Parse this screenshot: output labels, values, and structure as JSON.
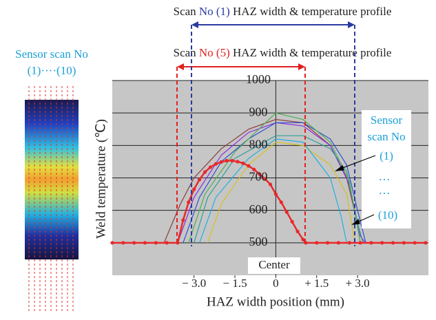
{
  "chart_data": {
    "type": "line",
    "annotations": {
      "scan1": [
        "Scan",
        "No (1)",
        "HAZ width & temperature profile"
      ],
      "scan5": [
        "Scan",
        "No (5)",
        "HAZ width & temperature profile"
      ],
      "sensor_title": [
        "Sensor scan No",
        "(1)····(10)"
      ],
      "sensor_in_plot": [
        "Sensor",
        "scan No",
        "(1)",
        "…",
        "…",
        "(10)"
      ],
      "center": "Center"
    },
    "ylabel": "Weld temperature (℃)",
    "xlabel": "HAZ width position (mm)",
    "xlim": [
      -6,
      5.6
    ],
    "ylim": [
      400,
      1000
    ],
    "xticks": [
      {
        "value": -3,
        "label": "− 3.0"
      },
      {
        "value": -1.5,
        "label": "− 1.5"
      },
      0,
      {
        "value": 1.5,
        "label": "+ 1.5"
      },
      {
        "value": 3,
        "label": "+ 3.0"
      }
    ],
    "yticks": [
      500,
      600,
      700,
      800,
      900,
      1000
    ],
    "grid": true,
    "series": [
      {
        "color": "#8b3a3a",
        "x": [
          -4.1,
          -3.5,
          -3,
          -2,
          -1,
          0,
          1,
          2,
          2.6,
          3,
          3.2
        ],
        "values": [
          500,
          620,
          700,
          790,
          850,
          880,
          870,
          800,
          700,
          560,
          500
        ]
      },
      {
        "color": "#8a2be2",
        "x": [
          -3.6,
          -3,
          -2,
          -1,
          0,
          1,
          2,
          2.7,
          3.1,
          3.3
        ],
        "values": [
          500,
          640,
          770,
          840,
          870,
          860,
          800,
          680,
          520,
          500
        ]
      },
      {
        "color": "#3050d0",
        "x": [
          -3.4,
          -2.8,
          -2,
          -1,
          0,
          1,
          2,
          2.6,
          3,
          3.3
        ],
        "values": [
          500,
          640,
          750,
          820,
          870,
          870,
          820,
          740,
          600,
          500
        ]
      },
      {
        "color": "#2aa198",
        "x": [
          -3,
          -2.5,
          -1.5,
          0,
          1,
          2,
          2.6,
          3,
          3.2
        ],
        "values": [
          500,
          640,
          760,
          830,
          830,
          790,
          720,
          560,
          500
        ]
      },
      {
        "color": "#4caf50",
        "x": [
          -3.2,
          -2.6,
          -1.5,
          0,
          1,
          2,
          2.7,
          3.1
        ],
        "values": [
          500,
          650,
          780,
          900,
          880,
          810,
          690,
          500
        ]
      },
      {
        "color": "#d4c020",
        "x": [
          -2.5,
          -2,
          -1,
          0,
          1,
          2,
          2.6,
          2.9
        ],
        "values": [
          500,
          620,
          740,
          810,
          800,
          740,
          650,
          500
        ]
      },
      {
        "color": "#20b0e0",
        "x": [
          -2.8,
          -2.2,
          -1,
          0,
          1,
          2,
          2.4,
          2.6
        ],
        "values": [
          500,
          640,
          760,
          820,
          810,
          700,
          580,
          500
        ]
      },
      {
        "color": "#e8282a",
        "markers": true,
        "x": [
          -6,
          -5.6,
          -5.2,
          -4.8,
          -4.4,
          -4,
          -3.6,
          -3.4,
          -3.2,
          -3,
          -2.8,
          -2.6,
          -2.4,
          -2.2,
          -2,
          -1.8,
          -1.6,
          -1.4,
          -1.2,
          -1,
          -0.8,
          -0.6,
          -0.4,
          -0.2,
          0,
          0.2,
          0.4,
          0.6,
          0.8,
          1,
          1.1,
          1.5,
          1.9,
          2.3,
          2.7,
          3.1,
          3.5,
          3.9,
          4.3,
          4.7,
          5.1,
          5.5
        ],
        "values": [
          500,
          500,
          500,
          500,
          500,
          500,
          500,
          570,
          625,
          665,
          695,
          718,
          733,
          743,
          749,
          753,
          753,
          750,
          745,
          737,
          726,
          712,
          697,
          680,
          650,
          625,
          595,
          565,
          535,
          510,
          500,
          500,
          500,
          500,
          500,
          500,
          500,
          500,
          500,
          500,
          500,
          500
        ]
      }
    ]
  }
}
